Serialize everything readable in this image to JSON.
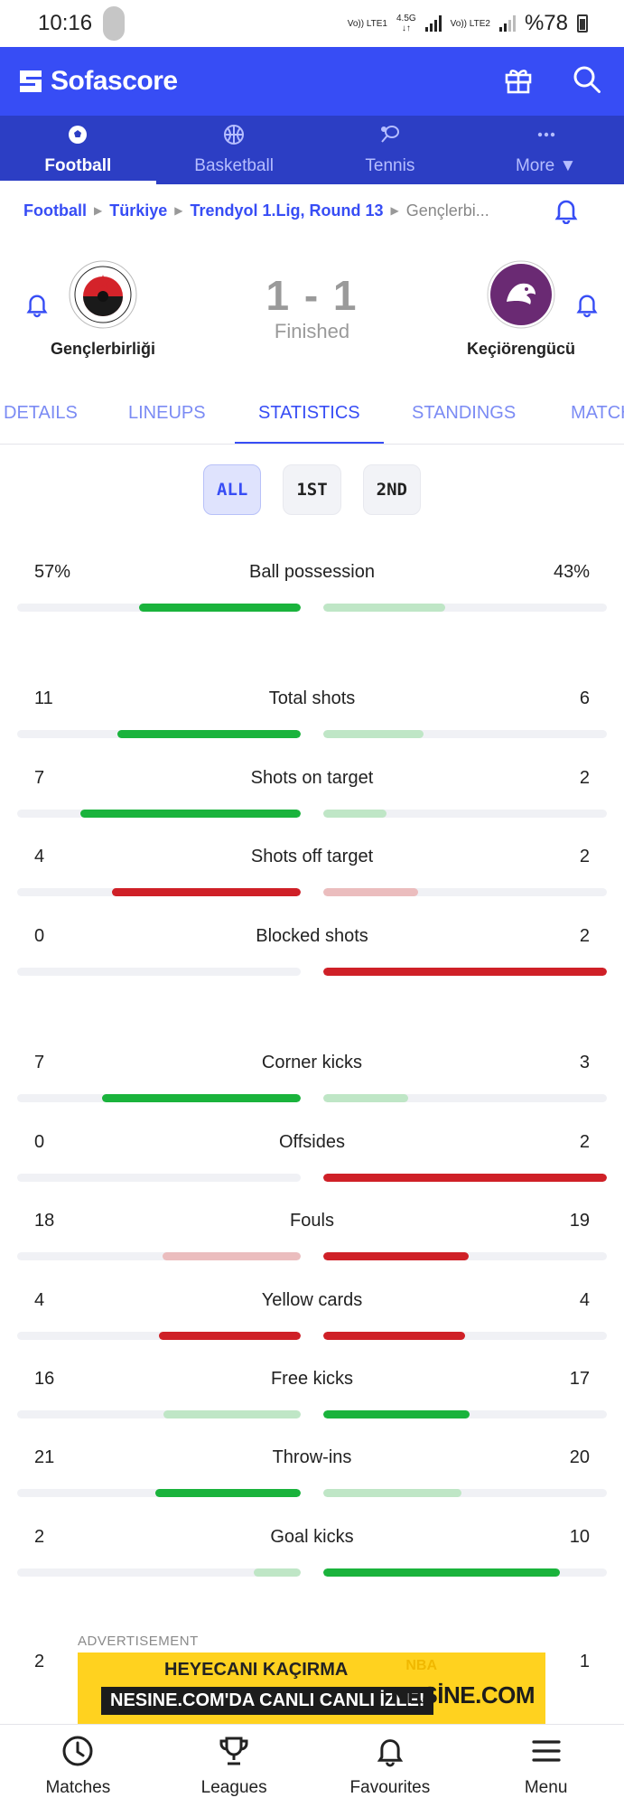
{
  "status_bar": {
    "time": "10:16",
    "net1_top": "Vo)) LTE1",
    "net1_mid": "4.5G",
    "net2_top": "Vo)) LTE2",
    "battery": "%78"
  },
  "header": {
    "brand": "Sofascore",
    "icons": [
      "gift-icon",
      "search-icon"
    ]
  },
  "sport_tabs": [
    {
      "label": "Football",
      "icon": "football-icon",
      "active": true
    },
    {
      "label": "Basketball",
      "icon": "basketball-icon",
      "active": false
    },
    {
      "label": "Tennis",
      "icon": "tennis-icon",
      "active": false
    },
    {
      "label": "More ▼",
      "icon": "more-icon",
      "active": false
    }
  ],
  "breadcrumb": [
    "Football",
    "Türkiye",
    "Trendyol 1.Lig, Round 13",
    "Gençlerbi..."
  ],
  "match": {
    "home": {
      "name": "Gençlerbirliği"
    },
    "away": {
      "name": "Keçiörengücü"
    },
    "score": "1 - 1",
    "status": "Finished"
  },
  "detail_tabs": [
    "DETAILS",
    "LINEUPS",
    "STATISTICS",
    "STANDINGS",
    "MATCHES"
  ],
  "active_detail_tab": "STATISTICS",
  "period_filters": [
    "ALL",
    "1ST",
    "2ND"
  ],
  "active_period": "ALL",
  "stats": [
    {
      "label": "Ball possession",
      "home": "57%",
      "away": "43%",
      "home_frac": 0.57,
      "away_frac": 0.43,
      "home_color": "win",
      "away_color": "lose"
    },
    {
      "label": "Total shots",
      "home": "11",
      "away": "6",
      "home_frac": 0.647,
      "away_frac": 0.353,
      "home_color": "win",
      "away_color": "lose"
    },
    {
      "label": "Shots on target",
      "home": "7",
      "away": "2",
      "home_frac": 0.778,
      "away_frac": 0.222,
      "home_color": "win",
      "away_color": "lose"
    },
    {
      "label": "Shots off target",
      "home": "4",
      "away": "2",
      "home_frac": 0.667,
      "away_frac": 0.333,
      "home_color": "bad",
      "away_color": "badlight"
    },
    {
      "label": "Blocked shots",
      "home": "0",
      "away": "2",
      "home_frac": 0,
      "away_frac": 1.0,
      "home_color": "badlight",
      "away_color": "bad"
    },
    {
      "label": "Corner kicks",
      "home": "7",
      "away": "3",
      "home_frac": 0.7,
      "away_frac": 0.3,
      "home_color": "win",
      "away_color": "lose"
    },
    {
      "label": "Offsides",
      "home": "0",
      "away": "2",
      "home_frac": 0,
      "away_frac": 1.0,
      "home_color": "badlight",
      "away_color": "bad"
    },
    {
      "label": "Fouls",
      "home": "18",
      "away": "19",
      "home_frac": 0.486,
      "away_frac": 0.514,
      "home_color": "badlight",
      "away_color": "bad"
    },
    {
      "label": "Yellow cards",
      "home": "4",
      "away": "4",
      "home_frac": 0.5,
      "away_frac": 0.5,
      "home_color": "bad",
      "away_color": "bad"
    },
    {
      "label": "Free kicks",
      "home": "16",
      "away": "17",
      "home_frac": 0.485,
      "away_frac": 0.515,
      "home_color": "lose",
      "away_color": "win"
    },
    {
      "label": "Throw-ins",
      "home": "21",
      "away": "20",
      "home_frac": 0.512,
      "away_frac": 0.488,
      "home_color": "win",
      "away_color": "lose"
    },
    {
      "label": "Goal kicks",
      "home": "2",
      "away": "10",
      "home_frac": 0.167,
      "away_frac": 0.833,
      "home_color": "lose",
      "away_color": "win"
    }
  ],
  "partial_row": {
    "home": "2",
    "away": "1"
  },
  "colors": {
    "win": "#1ab33c",
    "lose": "#bfe6c6",
    "bad": "#cf2027",
    "badlight": "#ebbdbe",
    "primary": "#374df5"
  },
  "ad": {
    "label": "ADVERTISEMENT",
    "line1": "HEYECANI KAÇIRMA",
    "line2": "NESINE.COM'DA CANLI CANLI İZLE!",
    "brand": "NESİNE.COM",
    "deco": "NBA"
  },
  "bottom_nav": [
    {
      "label": "Matches",
      "icon": "clock-icon"
    },
    {
      "label": "Leagues",
      "icon": "trophy-icon"
    },
    {
      "label": "Favourites",
      "icon": "bell-icon"
    },
    {
      "label": "Menu",
      "icon": "menu-icon"
    }
  ]
}
